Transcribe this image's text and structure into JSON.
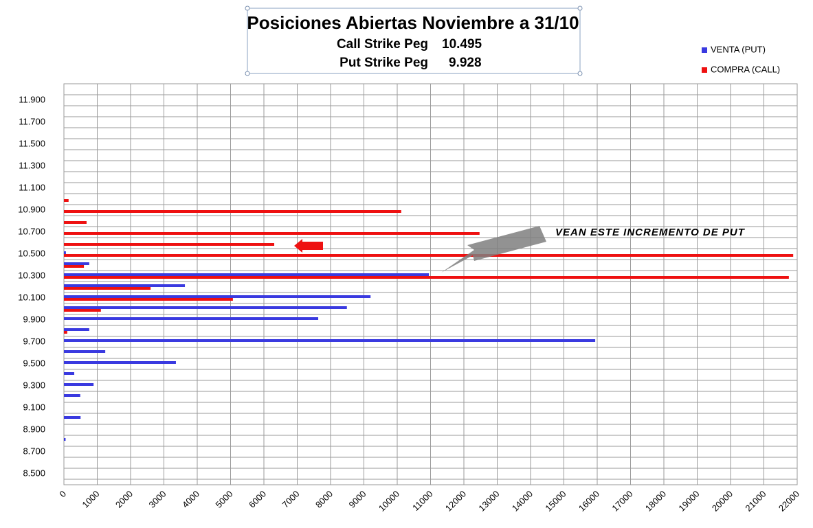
{
  "chart_data": {
    "type": "hbar",
    "title": "Posiciones Abiertas Noviembre a 31/10",
    "call_label": "Call Strike Peg",
    "call_value": "10.495",
    "put_label": "Put Strike Peg",
    "put_value": "9.928",
    "annotation": "VEAN ESTE INCREMENTO DE PUT",
    "categories": [
      "8.500",
      null,
      "8.700",
      null,
      "8.900",
      null,
      "9.100",
      null,
      "9.300",
      null,
      "9.500",
      null,
      "9.700",
      null,
      "9.900",
      null,
      "10.100",
      null,
      "10.300",
      null,
      "10.500",
      null,
      "10.700",
      null,
      "10.900",
      null,
      "11.100",
      null,
      "11.300",
      null,
      "11.500",
      null,
      "11.700",
      null,
      "11.900"
    ],
    "series": [
      {
        "name": "VENTA (PUT)",
        "color": "#3a3ae0",
        "values": [
          0,
          0,
          0,
          50,
          0,
          500,
          0,
          490,
          890,
          310,
          3360,
          1240,
          15940,
          760,
          7630,
          8490,
          9200,
          3630,
          10950,
          760,
          60,
          0,
          0,
          0,
          0,
          0,
          0,
          0,
          0,
          0,
          0,
          0,
          0,
          0,
          0
        ]
      },
      {
        "name": "COMPRA (CALL)",
        "color": "#ee1111",
        "values": [
          0,
          0,
          0,
          0,
          0,
          0,
          0,
          0,
          0,
          0,
          0,
          0,
          0,
          100,
          0,
          1110,
          5070,
          2600,
          21750,
          600,
          21880,
          6310,
          12470,
          680,
          10120,
          140,
          0,
          0,
          0,
          0,
          0,
          0,
          0,
          0,
          0
        ]
      }
    ],
    "xlim": [
      0,
      22000
    ],
    "xticks": [
      0,
      1000,
      2000,
      3000,
      4000,
      5000,
      6000,
      7000,
      8000,
      9000,
      10000,
      11000,
      12000,
      13000,
      14000,
      15000,
      16000,
      17000,
      18000,
      19000,
      20000,
      21000,
      22000
    ],
    "grid": true
  }
}
